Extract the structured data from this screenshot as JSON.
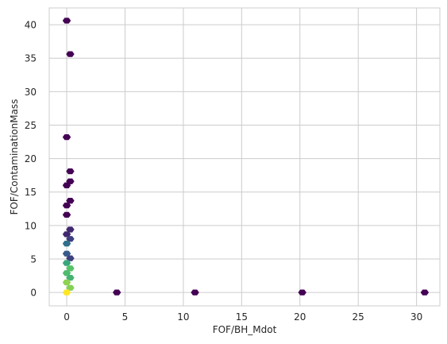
{
  "chart_data": {
    "type": "hexbin",
    "xlabel": "FOF/BH_Mdot",
    "ylabel": "FOF/ContaminationMass",
    "xlim": [
      -1.5,
      32.0
    ],
    "ylim": [
      -2.0,
      42.5
    ],
    "xticks": [
      0,
      5,
      10,
      15,
      20,
      25,
      30
    ],
    "yticks": [
      0,
      5,
      10,
      15,
      20,
      25,
      30,
      35,
      40
    ],
    "grid": true,
    "colormap": "viridis",
    "count_range": [
      1,
      300
    ],
    "bins": [
      {
        "x": 0.0,
        "y": 40.6,
        "count": 1
      },
      {
        "x": 0.3,
        "y": 35.6,
        "count": 1
      },
      {
        "x": 0.0,
        "y": 23.2,
        "count": 1
      },
      {
        "x": 0.3,
        "y": 18.1,
        "count": 1
      },
      {
        "x": 0.3,
        "y": 16.6,
        "count": 1
      },
      {
        "x": 0.0,
        "y": 16.0,
        "count": 1
      },
      {
        "x": 0.3,
        "y": 13.7,
        "count": 1
      },
      {
        "x": 0.0,
        "y": 13.0,
        "count": 1
      },
      {
        "x": 0.0,
        "y": 11.6,
        "count": 1
      },
      {
        "x": 0.3,
        "y": 9.4,
        "count": 2
      },
      {
        "x": 0.0,
        "y": 8.7,
        "count": 2
      },
      {
        "x": 0.3,
        "y": 8.0,
        "count": 3
      },
      {
        "x": 0.0,
        "y": 7.3,
        "count": 8
      },
      {
        "x": 0.0,
        "y": 5.8,
        "count": 5
      },
      {
        "x": 0.3,
        "y": 5.1,
        "count": 3
      },
      {
        "x": 0.0,
        "y": 4.4,
        "count": 30
      },
      {
        "x": 0.3,
        "y": 3.6,
        "count": 60
      },
      {
        "x": 0.0,
        "y": 2.9,
        "count": 50
      },
      {
        "x": 0.3,
        "y": 2.2,
        "count": 40
      },
      {
        "x": 0.0,
        "y": 1.5,
        "count": 110
      },
      {
        "x": 0.3,
        "y": 0.7,
        "count": 100
      },
      {
        "x": 0.0,
        "y": 0.0,
        "count": 300
      },
      {
        "x": 4.3,
        "y": 0.0,
        "count": 1
      },
      {
        "x": 11.0,
        "y": 0.0,
        "count": 1
      },
      {
        "x": 20.2,
        "y": 0.0,
        "count": 1
      },
      {
        "x": 30.7,
        "y": 0.0,
        "count": 1
      }
    ]
  }
}
